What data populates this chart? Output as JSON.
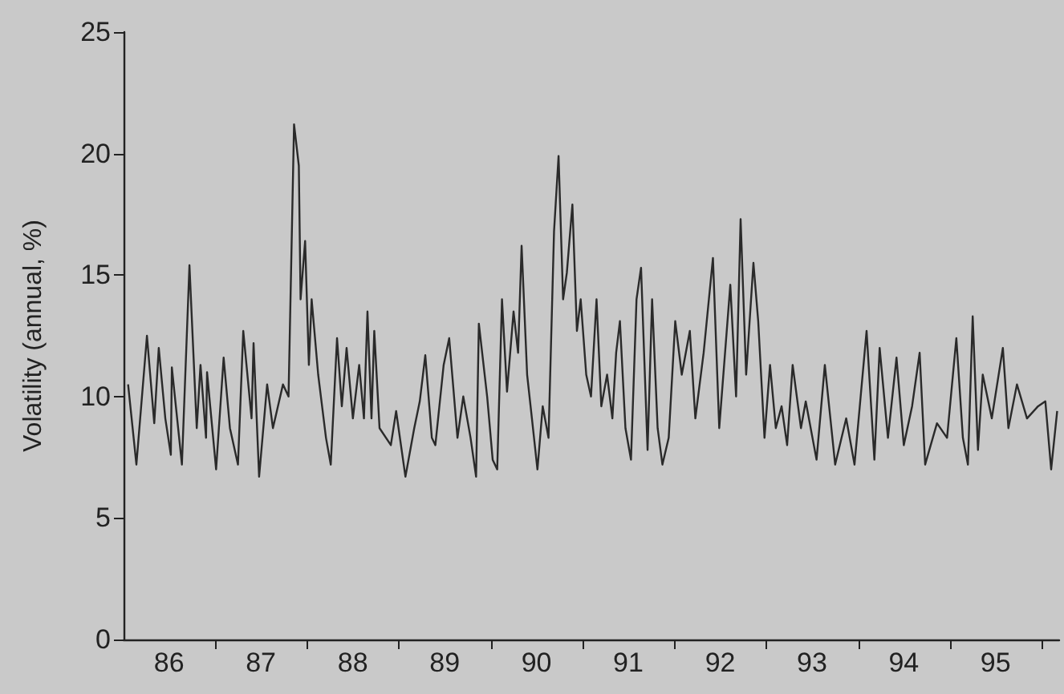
{
  "chart_data": {
    "type": "line",
    "ylabel": "Volatility (annual, %)",
    "color": "#2a2a2a",
    "marker": "none",
    "line_style": "solid",
    "grid": false,
    "xlim": [
      "1986-01-01",
      "1996-03-10"
    ],
    "xticks": [
      {
        "value": "1987-01-01",
        "label": null
      },
      {
        "value": "1988-01-01",
        "label": null
      },
      {
        "value": "1989-01-01",
        "label": null
      },
      {
        "value": "1990-01-01",
        "label": null
      },
      {
        "value": "1991-01-01",
        "label": null
      },
      {
        "value": "1992-01-01",
        "label": null
      },
      {
        "value": "1993-01-01",
        "label": null
      },
      {
        "value": "1994-01-01",
        "label": null
      },
      {
        "value": "1995-01-01",
        "label": null
      },
      {
        "value": "1996-01-01",
        "label": null
      },
      {
        "value": "1986-07-01",
        "label": "86"
      },
      {
        "value": "1987-07-01",
        "label": "87"
      },
      {
        "value": "1988-07-01",
        "label": "88"
      },
      {
        "value": "1989-07-01",
        "label": "89"
      },
      {
        "value": "1990-07-01",
        "label": "90"
      },
      {
        "value": "1991-07-01",
        "label": "91"
      },
      {
        "value": "1992-07-01",
        "label": "92"
      },
      {
        "value": "1993-07-01",
        "label": "93"
      },
      {
        "value": "1994-07-01",
        "label": "94"
      },
      {
        "value": "1995-07-01",
        "label": "95"
      }
    ],
    "ylim": [
      0,
      25
    ],
    "yticks": [
      0,
      5,
      10,
      15,
      20,
      25
    ],
    "x": [
      "1986-01-19",
      "1986-02-21",
      "1986-04-04",
      "1986-05-03",
      "1986-05-21",
      "1986-06-16",
      "1986-07-08",
      "1986-07-12",
      "1986-08-21",
      "1986-09-20",
      "1986-10-19",
      "1986-11-03",
      "1986-11-25",
      "1986-11-29",
      "1987-01-04",
      "1987-02-03",
      "1987-02-28",
      "1987-04-01",
      "1987-04-22",
      "1987-05-25",
      "1987-06-02",
      "1987-06-24",
      "1987-07-26",
      "1987-08-18",
      "1987-09-27",
      "1987-10-19",
      "1987-11-10",
      "1987-11-29",
      "1987-12-06",
      "1987-12-24",
      "1988-01-08",
      "1988-01-19",
      "1988-02-14",
      "1988-03-16",
      "1988-04-04",
      "1988-04-29",
      "1988-05-18",
      "1988-06-06",
      "1988-07-01",
      "1988-07-26",
      "1988-08-14",
      "1988-08-28",
      "1988-09-13",
      "1988-09-24",
      "1988-10-15",
      "1988-11-29",
      "1988-12-20",
      "1989-01-26",
      "1989-03-02",
      "1989-03-24",
      "1989-04-15",
      "1989-05-11",
      "1989-05-25",
      "1989-06-27",
      "1989-07-19",
      "1989-08-21",
      "1989-09-13",
      "1989-10-12",
      "1989-11-03",
      "1989-11-14",
      "1989-12-17",
      "1990-01-08",
      "1990-01-26",
      "1990-02-14",
      "1990-03-06",
      "1990-04-01",
      "1990-04-19",
      "1990-05-03",
      "1990-05-25",
      "1990-06-13",
      "1990-07-05",
      "1990-07-26",
      "1990-08-18",
      "1990-09-09",
      "1990-09-27",
      "1990-10-15",
      "1990-10-30",
      "1990-11-21",
      "1990-12-09",
      "1990-12-24",
      "1991-01-15",
      "1991-02-03",
      "1991-02-25",
      "1991-03-16",
      "1991-04-08",
      "1991-04-29",
      "1991-05-14",
      "1991-05-29",
      "1991-06-20",
      "1991-07-12",
      "1991-08-03",
      "1991-08-21",
      "1991-09-16",
      "1991-10-04",
      "1991-10-26",
      "1991-11-14",
      "1991-12-09",
      "1992-01-04",
      "1992-01-30",
      "1992-03-02",
      "1992-03-24",
      "1992-04-26",
      "1992-06-02",
      "1992-06-27",
      "1992-08-10",
      "1992-09-02",
      "1992-09-20",
      "1992-10-12",
      "1992-11-10",
      "1992-11-29",
      "1992-12-24",
      "1993-01-15",
      "1993-02-07",
      "1993-03-02",
      "1993-03-24",
      "1993-04-15",
      "1993-05-18",
      "1993-06-06",
      "1993-07-19",
      "1993-08-21",
      "1993-10-01",
      "1993-11-14",
      "1993-12-17",
      "1994-02-03",
      "1994-03-06",
      "1994-03-27",
      "1994-04-29",
      "1994-06-02",
      "1994-07-01",
      "1994-08-03",
      "1994-09-02",
      "1994-09-24",
      "1994-11-10",
      "1994-12-20",
      "1995-01-26",
      "1995-02-21",
      "1995-03-13",
      "1995-04-01",
      "1995-04-22",
      "1995-05-11",
      "1995-06-16",
      "1995-07-30",
      "1995-08-21",
      "1995-09-24",
      "1995-11-03",
      "1995-12-17",
      "1996-01-15",
      "1996-02-07",
      "1996-03-02"
    ],
    "values": [
      10.5,
      7.2,
      12.5,
      8.9,
      12.0,
      9.1,
      7.6,
      11.2,
      7.2,
      15.4,
      8.7,
      11.3,
      8.3,
      11.0,
      7.0,
      11.6,
      8.7,
      7.2,
      12.7,
      9.1,
      12.2,
      6.7,
      10.5,
      8.7,
      10.5,
      10.0,
      21.2,
      19.5,
      14.0,
      16.4,
      11.3,
      14.0,
      10.9,
      8.3,
      7.2,
      12.4,
      9.6,
      12.0,
      9.1,
      11.3,
      9.1,
      13.5,
      9.1,
      12.7,
      8.7,
      8.0,
      9.4,
      6.7,
      8.7,
      9.8,
      11.7,
      8.3,
      8.0,
      11.3,
      12.4,
      8.3,
      10.0,
      8.3,
      6.7,
      13.0,
      10.0,
      7.4,
      7.0,
      14.0,
      10.2,
      13.5,
      11.8,
      16.2,
      10.9,
      9.1,
      7.0,
      9.6,
      8.3,
      16.8,
      19.9,
      14.0,
      15.1,
      17.9,
      12.7,
      14.0,
      10.9,
      10.0,
      14.0,
      9.6,
      10.9,
      9.1,
      11.8,
      13.1,
      8.7,
      7.4,
      14.0,
      15.3,
      7.8,
      14.0,
      8.7,
      7.2,
      8.3,
      13.1,
      10.9,
      12.7,
      9.1,
      11.8,
      15.7,
      8.7,
      14.6,
      10.0,
      17.3,
      10.9,
      15.5,
      13.1,
      8.3,
      11.3,
      8.7,
      9.6,
      8.0,
      11.3,
      8.7,
      9.8,
      7.4,
      11.3,
      7.2,
      9.1,
      7.2,
      12.7,
      7.4,
      12.0,
      8.3,
      11.6,
      8.0,
      9.6,
      11.8,
      7.2,
      8.9,
      8.3,
      12.4,
      8.3,
      7.2,
      13.3,
      7.8,
      10.9,
      9.1,
      12.0,
      8.7,
      10.5,
      9.1,
      9.6,
      9.8,
      7.0,
      9.4
    ]
  }
}
